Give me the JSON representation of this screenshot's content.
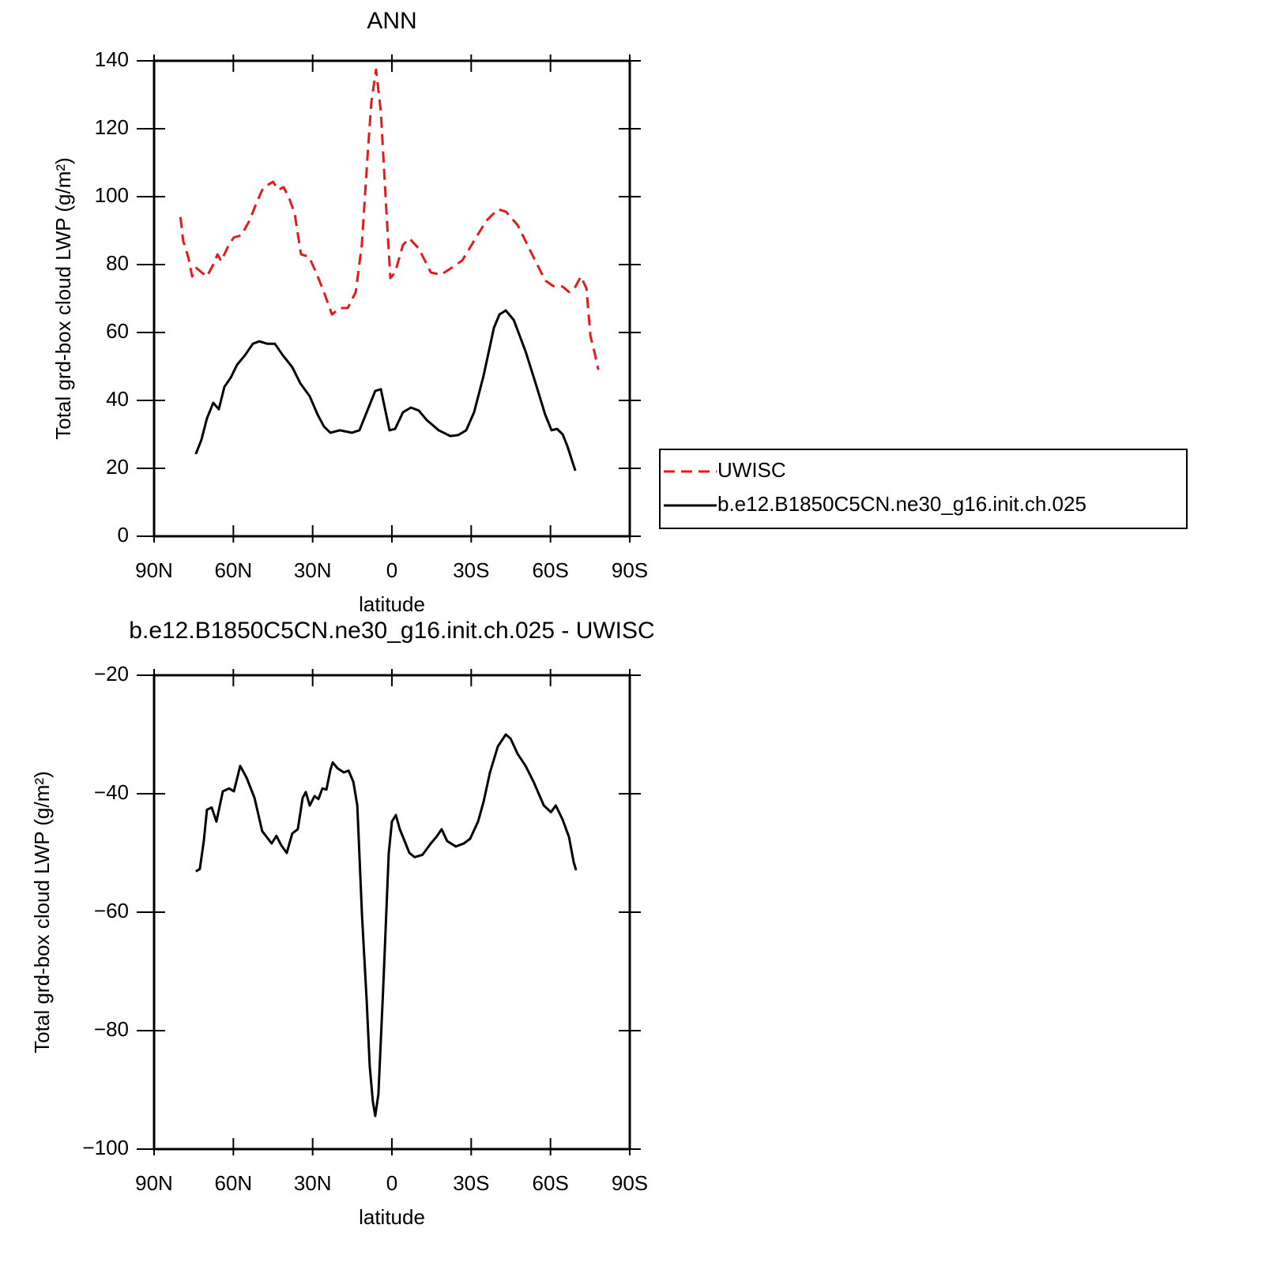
{
  "chart_data": [
    {
      "type": "line",
      "title": "ANN",
      "x_label": "latitude",
      "y_label": "Total grd-box cloud LWP (g/m²)",
      "xlim": [
        90,
        -90
      ],
      "xticks": [
        {
          "value": 90,
          "label": "90N"
        },
        {
          "value": 60,
          "label": "60N"
        },
        {
          "value": 30,
          "label": "30N"
        },
        0,
        {
          "value": -30,
          "label": "30S"
        },
        {
          "value": -60,
          "label": "60S"
        },
        {
          "value": -90,
          "label": "90S"
        }
      ],
      "ylim": [
        0,
        140
      ],
      "yticks": [
        0,
        20,
        40,
        60,
        80,
        100,
        120,
        140
      ],
      "legend": "outside right",
      "series": [
        {
          "name": "UWISC",
          "color": "#e41a1c",
          "dash": true,
          "x": [
            80,
            79,
            77,
            75.6,
            74,
            72,
            70,
            67.6,
            66,
            64.6,
            61.6,
            59.8,
            57,
            54,
            51,
            48.7,
            45,
            43,
            41,
            39,
            36.8,
            34.4,
            31.4,
            28.7,
            25.7,
            22.7,
            19.7,
            16.7,
            13.7,
            11.4,
            9.3,
            7.8,
            6,
            4.2,
            2.4,
            0.6,
            -1.2,
            -4.2,
            -6.6,
            -10.2,
            -14.7,
            -18.5,
            -22.1,
            -26.6,
            -31.1,
            -35.6,
            -40.1,
            -43.1,
            -47.6,
            -52.7,
            -58,
            -61,
            -64.6,
            -67,
            -69.1,
            -71.5,
            -73.6,
            -75.1,
            -76.6,
            -78.1
          ],
          "values": [
            94,
            87,
            82,
            76.5,
            79,
            77.7,
            76.5,
            80,
            83,
            81,
            86,
            88,
            88.6,
            92.8,
            98.6,
            102.6,
            104.4,
            102,
            102.8,
            99.8,
            95,
            83,
            82.3,
            77.7,
            71.9,
            65.3,
            67.2,
            67.2,
            71.9,
            85.8,
            111,
            127.7,
            137.4,
            125,
            99.8,
            76,
            77.7,
            85.8,
            87.7,
            84.7,
            77.7,
            77,
            78.8,
            81.2,
            87,
            92.8,
            96.3,
            95.6,
            91.6,
            83.5,
            75.3,
            73.7,
            73.5,
            71.9,
            73,
            76.5,
            73,
            59,
            54.4,
            49
          ]
        },
        {
          "name": "b.e12.B1850C5CN.ne30_g16.init.ch.025",
          "color": "#000000",
          "dash": false,
          "x": [
            74.2,
            72.1,
            70,
            67.6,
            65.5,
            63.4,
            61,
            58.6,
            55.6,
            52.6,
            50.2,
            47.2,
            44.3,
            41.3,
            37.7,
            34.7,
            31.1,
            28.1,
            25.7,
            23.3,
            19.7,
            15.2,
            12.3,
            9.3,
            6.3,
            4.2,
            0.9,
            -1.2,
            -4.2,
            -7.2,
            -10.2,
            -13.2,
            -17.7,
            -22.1,
            -25.1,
            -28.1,
            -31.1,
            -34.7,
            -38.6,
            -40.7,
            -43.1,
            -46.1,
            -50.6,
            -54.5,
            -58,
            -60.4,
            -62.5,
            -64.6,
            -66.4,
            -69.4
          ],
          "values": [
            24.2,
            28.4,
            34.7,
            39.3,
            37.4,
            44,
            46.7,
            50.5,
            53.3,
            56.7,
            57.4,
            56.7,
            56.7,
            53.3,
            49.8,
            45.1,
            41.2,
            35.8,
            32.3,
            30.5,
            31.2,
            30.5,
            31.2,
            37,
            42.8,
            43.3,
            31.2,
            31.6,
            36.5,
            37.9,
            37,
            34.2,
            31.2,
            29.5,
            29.8,
            31.2,
            36.5,
            47.4,
            61.4,
            65.3,
            66.5,
            63.7,
            54.4,
            44.7,
            35.8,
            31.2,
            31.6,
            30,
            26.5,
            19.3
          ]
        }
      ]
    },
    {
      "type": "line",
      "title": "b.e12.B1850C5CN.ne30_g16.init.ch.025 - UWISC",
      "x_label": "latitude",
      "y_label": "Total grd-box cloud LWP (g/m²)",
      "xlim": [
        90,
        -90
      ],
      "xticks": [
        {
          "value": 90,
          "label": "90N"
        },
        {
          "value": 60,
          "label": "60N"
        },
        {
          "value": 30,
          "label": "30N"
        },
        0,
        {
          "value": -30,
          "label": "30S"
        },
        {
          "value": -60,
          "label": "60S"
        },
        {
          "value": -90,
          "label": "90S"
        }
      ],
      "ylim": [
        -100,
        -20
      ],
      "yticks": [
        -100,
        -80,
        -60,
        -40,
        -20
      ],
      "color": "#000000",
      "x": [
        74.2,
        72.7,
        71.2,
        70,
        68.2,
        66.4,
        64,
        61.6,
        59.8,
        57.4,
        55,
        52,
        49.1,
        45.5,
        43.7,
        41.9,
        39.8,
        37.7,
        35.6,
        33.8,
        32.6,
        31.1,
        29.3,
        27.8,
        26.3,
        24.8,
        23.3,
        22.4,
        20.6,
        18.2,
        16.4,
        14.6,
        13.1,
        11.3,
        9.5,
        8.4,
        7.2,
        6.3,
        5.1,
        3.3,
        1.2,
        0,
        -1.5,
        -3,
        -4.8,
        -6.6,
        -8.6,
        -11.6,
        -14.7,
        -16.8,
        -18.8,
        -20.9,
        -24.2,
        -27.2,
        -29.6,
        -32.6,
        -34.7,
        -37.1,
        -40.1,
        -43.1,
        -44.9,
        -47.6,
        -50.6,
        -53.6,
        -57.5,
        -60.2,
        -62,
        -64.6,
        -67,
        -68.8,
        -69.7
      ],
      "values": [
        -53.1,
        -52.7,
        -48,
        -42.7,
        -42.3,
        -44.7,
        -39.6,
        -39.1,
        -39.6,
        -35.3,
        -37.3,
        -40.7,
        -46.3,
        -48.4,
        -47.1,
        -48.7,
        -50,
        -46.7,
        -46,
        -40.7,
        -39.7,
        -42,
        -40.4,
        -40.9,
        -39.1,
        -39.3,
        -36,
        -34.7,
        -35.7,
        -36.4,
        -36.1,
        -38,
        -42,
        -60.7,
        -75.3,
        -86,
        -92,
        -94.4,
        -90.7,
        -72.7,
        -50,
        -44.7,
        -43.6,
        -46,
        -48,
        -50,
        -50.7,
        -50.3,
        -48.4,
        -47.3,
        -46,
        -48,
        -48.9,
        -48.4,
        -47.6,
        -44.7,
        -41.3,
        -36.4,
        -32,
        -30,
        -30.7,
        -33.3,
        -35.3,
        -38,
        -42,
        -43.1,
        -42,
        -44.4,
        -47.3,
        -51.6,
        -52.9
      ]
    }
  ]
}
